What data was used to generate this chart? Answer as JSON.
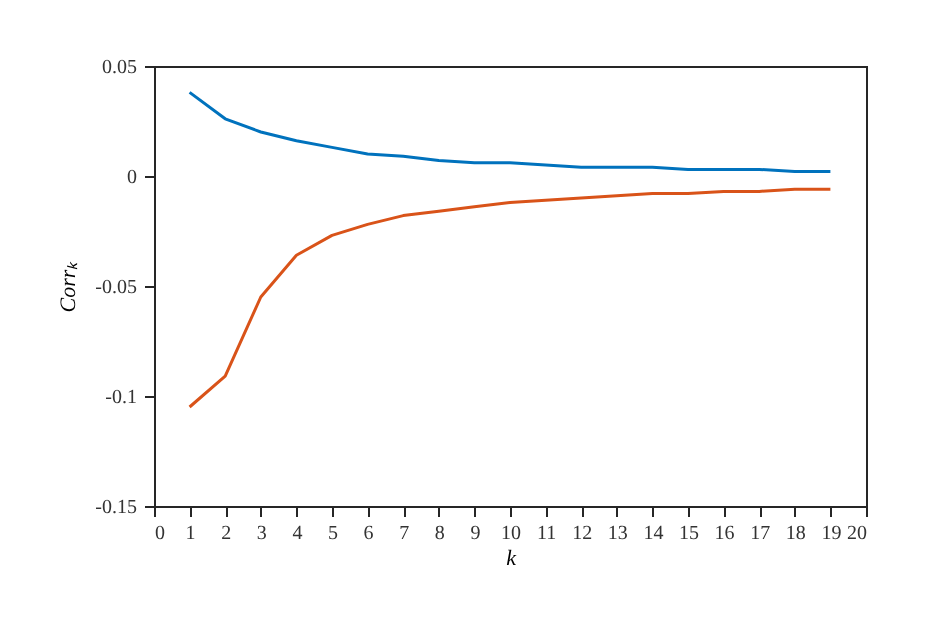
{
  "chart_data": {
    "type": "line",
    "xlabel": "k",
    "ylabel": "Corrₖ",
    "x": [
      1,
      2,
      3,
      4,
      5,
      6,
      7,
      8,
      9,
      10,
      11,
      12,
      13,
      14,
      15,
      16,
      17,
      18,
      19
    ],
    "series": [
      {
        "color": "#0072bd",
        "values": [
          0.038,
          0.026,
          0.02,
          0.016,
          0.013,
          0.01,
          0.009,
          0.007,
          0.006,
          0.006,
          0.005,
          0.004,
          0.004,
          0.004,
          0.003,
          0.003,
          0.003,
          0.002,
          0.002
        ]
      },
      {
        "color": "#d95319",
        "values": [
          -0.105,
          -0.091,
          -0.055,
          -0.036,
          -0.027,
          -0.022,
          -0.018,
          -0.016,
          -0.014,
          -0.012,
          -0.011,
          -0.01,
          -0.009,
          -0.008,
          -0.008,
          -0.007,
          -0.007,
          -0.006,
          -0.006
        ]
      }
    ],
    "xlim": [
      0,
      20
    ],
    "xticks": [
      0,
      1,
      2,
      3,
      4,
      5,
      6,
      7,
      8,
      9,
      10,
      11,
      12,
      13,
      14,
      15,
      16,
      17,
      18,
      19,
      20
    ],
    "ylim": [
      -0.15,
      0.05
    ],
    "yticks": [
      -0.15,
      -0.1,
      -0.05,
      0,
      0.05
    ],
    "grid": false,
    "legend": false,
    "marker": "none",
    "line_style": "solid"
  }
}
